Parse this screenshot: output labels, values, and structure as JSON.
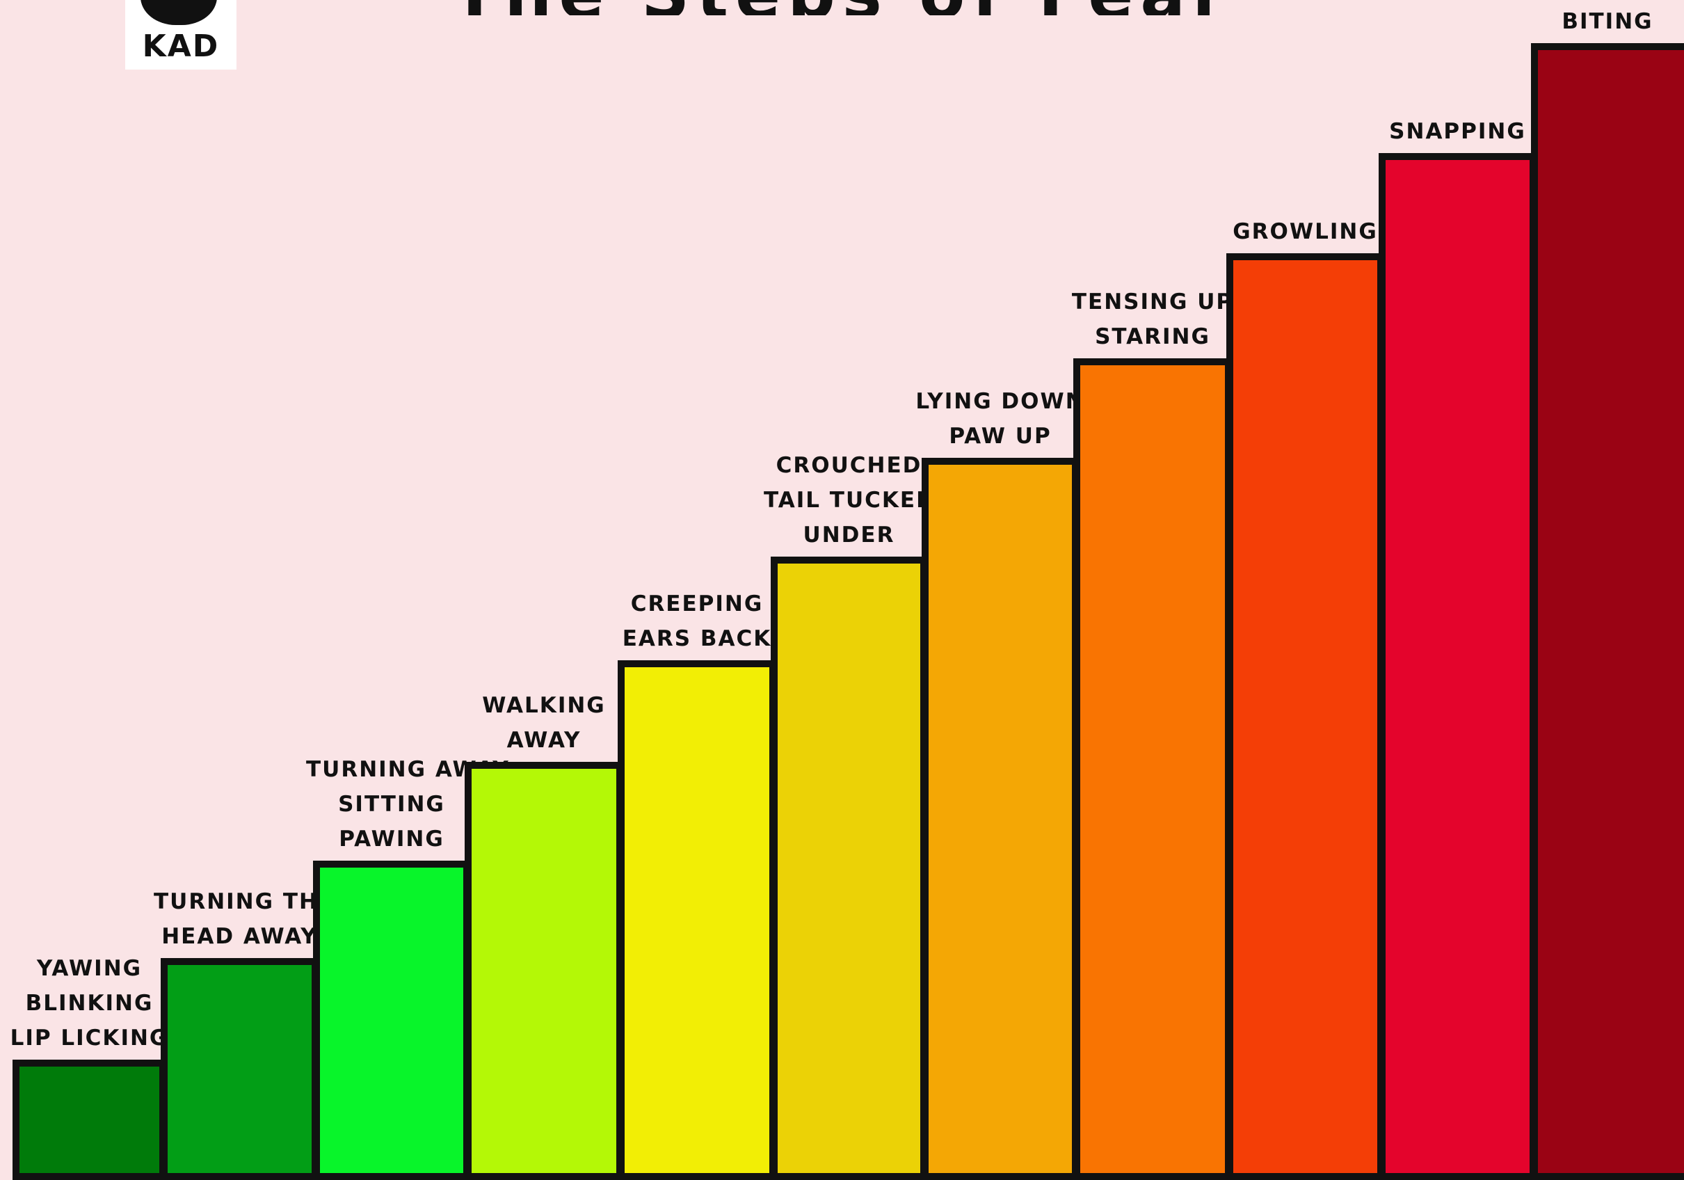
{
  "title": "The Steps of Fear",
  "logo": {
    "text": "KAD"
  },
  "steps": [
    {
      "lines": [
        "YAWING",
        "BLINKING",
        "LIP LICKING"
      ],
      "color": "#007b0a"
    },
    {
      "lines": [
        "TURNING THE",
        "HEAD AWAY"
      ],
      "color": "#029e16"
    },
    {
      "lines": [
        "TURNING AWAY",
        "SITTING",
        "PAWING"
      ],
      "color": "#08f52a"
    },
    {
      "lines": [
        "WALKING",
        "AWAY"
      ],
      "color": "#b4f806"
    },
    {
      "lines": [
        "CREEPING",
        "EARS BACK"
      ],
      "color": "#f2ee05"
    },
    {
      "lines": [
        "CROUCHED",
        "TAIL TUCKED",
        "UNDER"
      ],
      "color": "#ebd206"
    },
    {
      "lines": [
        "LYING DOWN",
        "PAW UP"
      ],
      "color": "#f4a705"
    },
    {
      "lines": [
        "TENSING UP",
        "STARING"
      ],
      "color": "#f97402"
    },
    {
      "lines": [
        "GROWLING"
      ],
      "color": "#f43e06"
    },
    {
      "lines": [
        "SNAPPING"
      ],
      "color": "#e4042c"
    },
    {
      "lines": [
        "BITING"
      ],
      "color": "#9a0314"
    }
  ]
}
